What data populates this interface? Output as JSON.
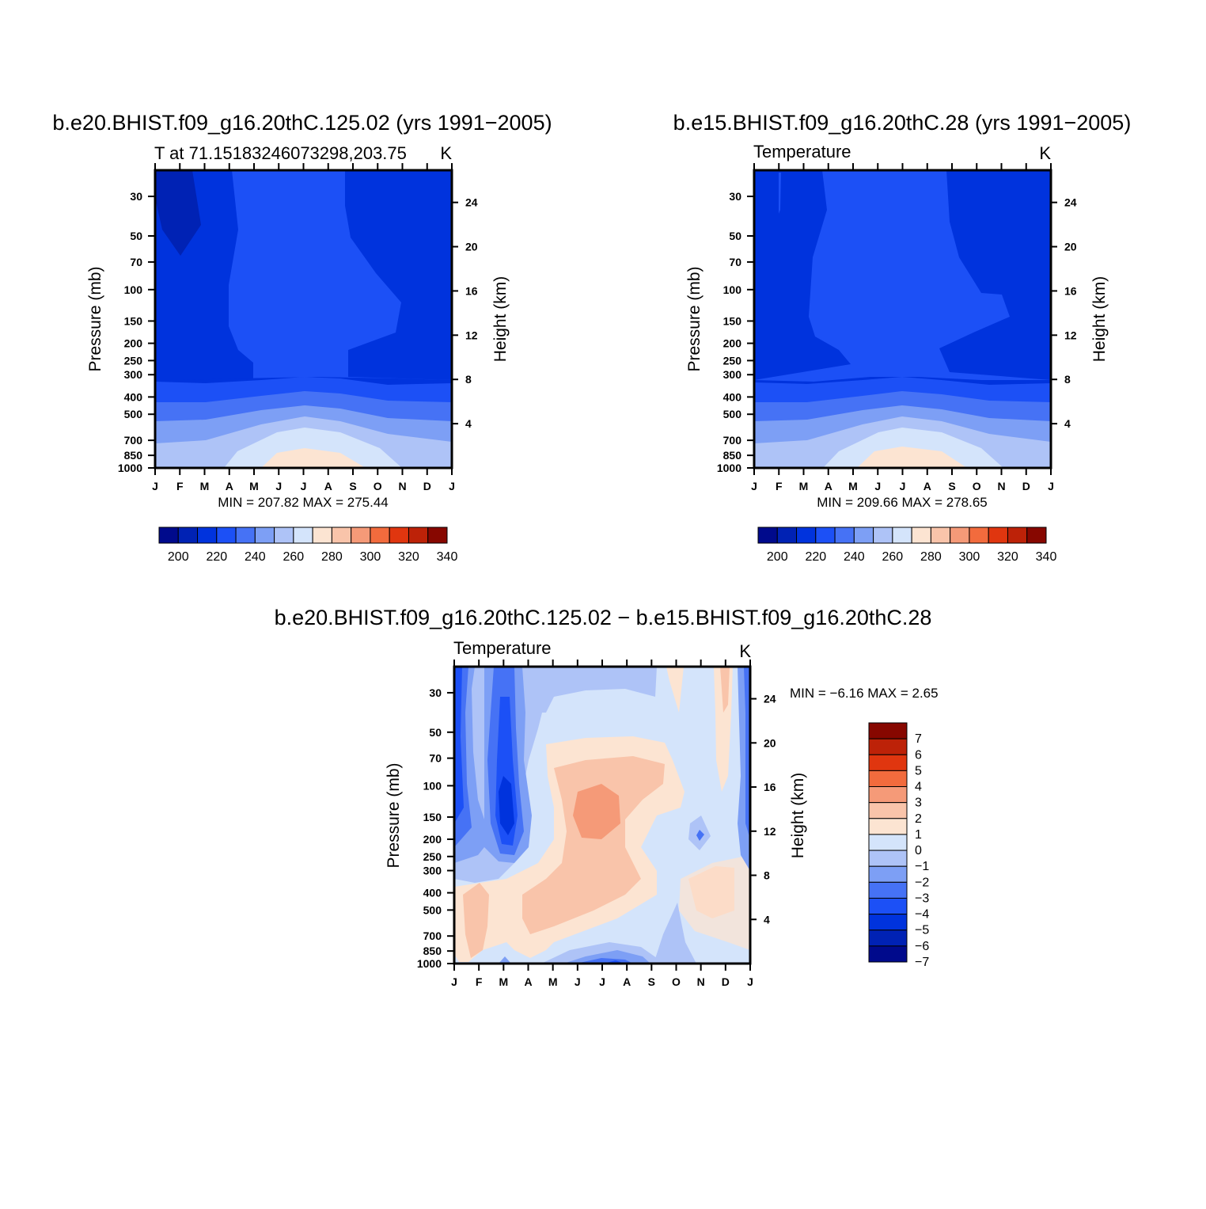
{
  "chart_data": [
    {
      "type": "heatmap",
      "id": "panel-e20",
      "title": "b.e20.BHIST.f09_g16.20thC.125.02 (yrs 1991−2005)",
      "left_subtitle": "T at 71.15183246073298,203.75",
      "right_subtitle": "K",
      "xlabel": "",
      "ylabel": "Pressure (mb)",
      "ylabel_right": "Height (km)",
      "x_ticks": [
        "J",
        "F",
        "M",
        "A",
        "M",
        "J",
        "J",
        "A",
        "S",
        "O",
        "N",
        "D",
        "J"
      ],
      "y_ticks": [
        "30",
        "50",
        "70",
        "100",
        "150",
        "200",
        "250",
        "300",
        "400",
        "500",
        "700",
        "850",
        "1000"
      ],
      "y_ticks_right": [
        "24",
        "20",
        "16",
        "12",
        "8",
        "4"
      ],
      "min_max": "MIN = 207.82 MAX = 275.44",
      "colorbar_labels": [
        "200",
        "220",
        "240",
        "260",
        "280",
        "300",
        "320",
        "340"
      ],
      "levels": [
        200,
        210,
        220,
        230,
        240,
        250,
        260,
        270,
        280,
        290,
        300,
        310,
        320,
        330,
        340
      ]
    },
    {
      "type": "heatmap",
      "id": "panel-e15",
      "title": "b.e15.BHIST.f09_g16.20thC.28 (yrs 1991−2005)",
      "left_subtitle": "Temperature",
      "right_subtitle": "K",
      "xlabel": "",
      "ylabel": "Pressure (mb)",
      "ylabel_right": "Height (km)",
      "x_ticks": [
        "J",
        "F",
        "M",
        "A",
        "M",
        "J",
        "J",
        "A",
        "S",
        "O",
        "N",
        "D",
        "J"
      ],
      "y_ticks": [
        "30",
        "50",
        "70",
        "100",
        "150",
        "200",
        "250",
        "300",
        "400",
        "500",
        "700",
        "850",
        "1000"
      ],
      "y_ticks_right": [
        "24",
        "20",
        "16",
        "12",
        "8",
        "4"
      ],
      "min_max": "MIN = 209.66 MAX = 278.65",
      "colorbar_labels": [
        "200",
        "220",
        "240",
        "260",
        "280",
        "300",
        "320",
        "340"
      ],
      "levels": [
        200,
        210,
        220,
        230,
        240,
        250,
        260,
        270,
        280,
        290,
        300,
        310,
        320,
        330,
        340
      ]
    },
    {
      "type": "heatmap",
      "id": "panel-diff",
      "title": "b.e20.BHIST.f09_g16.20thC.125.02 − b.e15.BHIST.f09_g16.20thC.28",
      "left_subtitle": "Temperature",
      "right_subtitle": "K",
      "xlabel": "",
      "ylabel": "Pressure (mb)",
      "ylabel_right": "Height (km)",
      "x_ticks": [
        "J",
        "F",
        "M",
        "A",
        "M",
        "J",
        "J",
        "A",
        "S",
        "O",
        "N",
        "D",
        "J"
      ],
      "y_ticks": [
        "30",
        "50",
        "70",
        "100",
        "150",
        "200",
        "250",
        "300",
        "400",
        "500",
        "700",
        "850",
        "1000"
      ],
      "y_ticks_right": [
        "24",
        "20",
        "16",
        "12",
        "8",
        "4"
      ],
      "min_max": "MIN =   −6.16 MAX =    2.65",
      "colorbar_labels": [
        "7",
        "6",
        "5",
        "4",
        "3",
        "2",
        "1",
        "0",
        "−1",
        "−2",
        "−3",
        "−4",
        "−5",
        "−6",
        "−7"
      ],
      "levels": [
        -7,
        -6,
        -5,
        -4,
        -3,
        -2,
        -1,
        0,
        1,
        2,
        3,
        4,
        5,
        6,
        7
      ]
    }
  ],
  "colors": {
    "abs_palette": [
      "#000a8c",
      "#0022b4",
      "#0033dd",
      "#1c50f6",
      "#4672f5",
      "#7d9ff5",
      "#aec3f7",
      "#d4e4fb",
      "#fce4d2",
      "#f9c4aa",
      "#f59a78",
      "#f26b3d",
      "#e0360f",
      "#bd2208",
      "#870700"
    ],
    "diff_palette": [
      "#870700",
      "#bd2208",
      "#e0360f",
      "#f26b3d",
      "#f59a78",
      "#f9c4aa",
      "#fce4d2",
      "#d4e4fb",
      "#aec3f7",
      "#7d9ff5",
      "#4672f5",
      "#1c50f6",
      "#0033dd",
      "#0022b4",
      "#000a8c"
    ]
  }
}
